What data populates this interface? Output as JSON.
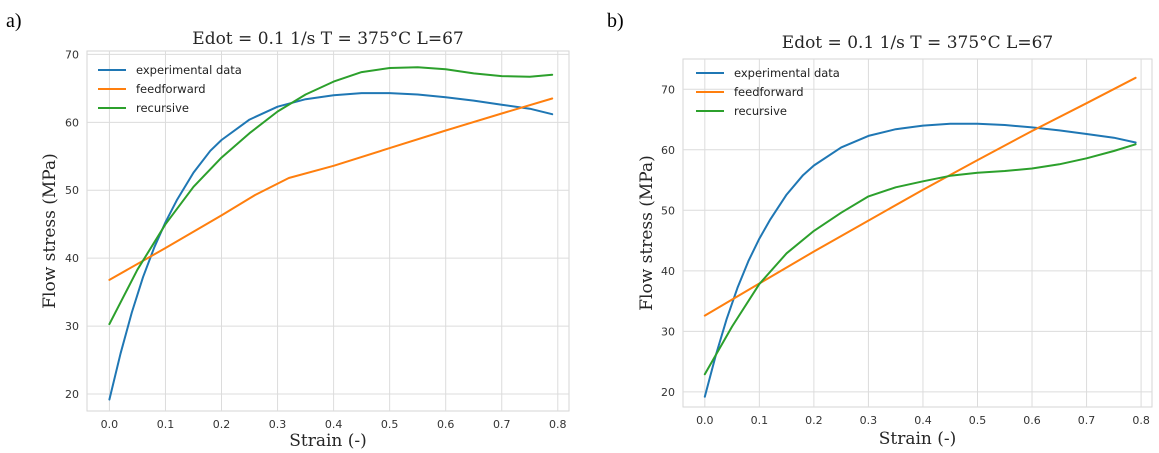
{
  "chart_data": [
    {
      "panel": "a)",
      "type": "line",
      "title": "Edot = 0.1 1/s   T = 375°C   L=67",
      "xlabel": "Strain (-)",
      "ylabel": "Flow stress (MPa)",
      "xlim": [
        -0.04,
        0.82
      ],
      "ylim": [
        17.5,
        70.5
      ],
      "xticks": [
        "0.0",
        "0.1",
        "0.2",
        "0.3",
        "0.4",
        "0.5",
        "0.6",
        "0.7",
        "0.8"
      ],
      "yticks": [
        "20",
        "30",
        "40",
        "50",
        "60",
        "70"
      ],
      "grid": true,
      "legend": "upper-left",
      "series": [
        {
          "name": "experimental data",
          "color": "#1f77b4",
          "x": [
            0.0,
            0.02,
            0.04,
            0.06,
            0.08,
            0.1,
            0.12,
            0.15,
            0.18,
            0.2,
            0.25,
            0.3,
            0.35,
            0.4,
            0.45,
            0.5,
            0.55,
            0.6,
            0.65,
            0.7,
            0.75,
            0.79
          ],
          "y": [
            19.2,
            26.0,
            32.0,
            37.2,
            41.6,
            45.3,
            48.5,
            52.6,
            55.8,
            57.4,
            60.4,
            62.3,
            63.4,
            64.0,
            64.3,
            64.3,
            64.1,
            63.7,
            63.2,
            62.6,
            62.0,
            61.2
          ]
        },
        {
          "name": "feedforward",
          "color": "#ff7f0e",
          "x": [
            0.0,
            0.1,
            0.2,
            0.26,
            0.32,
            0.4,
            0.5,
            0.6,
            0.7,
            0.79
          ],
          "y": [
            36.8,
            41.5,
            46.3,
            49.3,
            51.8,
            53.6,
            56.2,
            58.8,
            61.3,
            63.5
          ]
        },
        {
          "name": "recursive",
          "color": "#2ca02c",
          "x": [
            0.0,
            0.05,
            0.1,
            0.15,
            0.2,
            0.25,
            0.3,
            0.35,
            0.4,
            0.45,
            0.5,
            0.55,
            0.6,
            0.65,
            0.7,
            0.75,
            0.79
          ],
          "y": [
            30.3,
            38.3,
            45.0,
            50.5,
            54.8,
            58.4,
            61.6,
            64.1,
            66.0,
            67.4,
            68.0,
            68.1,
            67.8,
            67.2,
            66.8,
            66.7,
            67.0
          ]
        }
      ]
    },
    {
      "panel": "b)",
      "type": "line",
      "title": "Edot = 0.1 1/s   T = 375°C   L=67",
      "xlabel": "Strain (-)",
      "ylabel": "Flow stress (MPa)",
      "xlim": [
        -0.04,
        0.82
      ],
      "ylim": [
        17.5,
        75.0
      ],
      "xticks": [
        "0.0",
        "0.1",
        "0.2",
        "0.3",
        "0.4",
        "0.5",
        "0.6",
        "0.7",
        "0.8"
      ],
      "yticks": [
        "20",
        "30",
        "40",
        "50",
        "60",
        "70"
      ],
      "grid": true,
      "legend": "upper-left",
      "series": [
        {
          "name": "experimental data",
          "color": "#1f77b4",
          "x": [
            0.0,
            0.02,
            0.04,
            0.06,
            0.08,
            0.1,
            0.12,
            0.15,
            0.18,
            0.2,
            0.25,
            0.3,
            0.35,
            0.4,
            0.45,
            0.5,
            0.55,
            0.6,
            0.65,
            0.7,
            0.75,
            0.79
          ],
          "y": [
            19.2,
            26.0,
            32.0,
            37.2,
            41.6,
            45.3,
            48.5,
            52.6,
            55.8,
            57.4,
            60.4,
            62.3,
            63.4,
            64.0,
            64.3,
            64.3,
            64.1,
            63.7,
            63.2,
            62.6,
            62.0,
            61.2
          ]
        },
        {
          "name": "feedforward",
          "color": "#ff7f0e",
          "x": [
            0.0,
            0.1,
            0.2,
            0.3,
            0.4,
            0.5,
            0.6,
            0.7,
            0.79
          ],
          "y": [
            32.6,
            37.9,
            43.2,
            48.3,
            53.4,
            58.3,
            63.1,
            67.7,
            71.9
          ]
        },
        {
          "name": "recursive",
          "color": "#2ca02c",
          "x": [
            0.0,
            0.05,
            0.1,
            0.15,
            0.2,
            0.25,
            0.3,
            0.35,
            0.4,
            0.45,
            0.5,
            0.55,
            0.6,
            0.65,
            0.7,
            0.75,
            0.79
          ],
          "y": [
            22.9,
            30.8,
            37.8,
            42.9,
            46.6,
            49.6,
            52.3,
            53.8,
            54.8,
            55.7,
            56.2,
            56.5,
            56.9,
            57.6,
            58.6,
            59.8,
            60.9
          ]
        }
      ]
    }
  ]
}
